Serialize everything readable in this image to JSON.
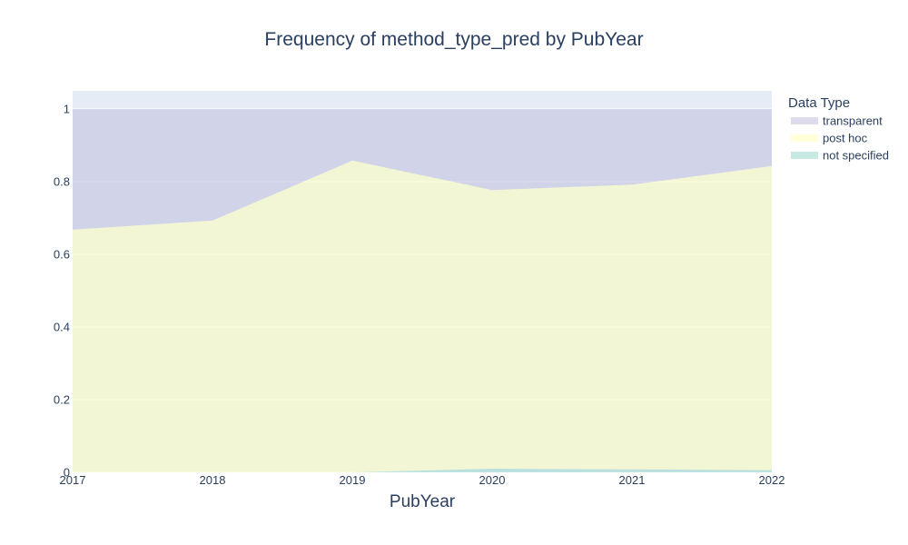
{
  "chart_data": {
    "type": "area",
    "stacked": true,
    "title": "Frequency of method_type_pred by PubYear",
    "xlabel": "PubYear",
    "ylabel": "",
    "x": [
      "2017",
      "2018",
      "2019",
      "2020",
      "2021",
      "2022"
    ],
    "ylim": [
      0,
      1.05
    ],
    "y_ticks": [
      "0",
      "0.2",
      "0.4",
      "0.6",
      "0.8",
      "1"
    ],
    "y_tick_values": [
      0,
      0.2,
      0.4,
      0.6,
      0.8,
      1
    ],
    "grid": true,
    "legend_title": "Data Type",
    "legend_position": "top-right",
    "series": [
      {
        "name": "not specified",
        "color": "#8dd3c7",
        "values": [
          0,
          0,
          0,
          0.01,
          0.008,
          0.006
        ]
      },
      {
        "name": "post hoc",
        "color": "#ffffb3",
        "values": [
          0.668,
          0.693,
          0.858,
          0.767,
          0.784,
          0.837
        ]
      },
      {
        "name": "transparent",
        "color": "#bebada",
        "values": [
          0.332,
          0.307,
          0.142,
          0.223,
          0.208,
          0.157
        ]
      }
    ]
  }
}
